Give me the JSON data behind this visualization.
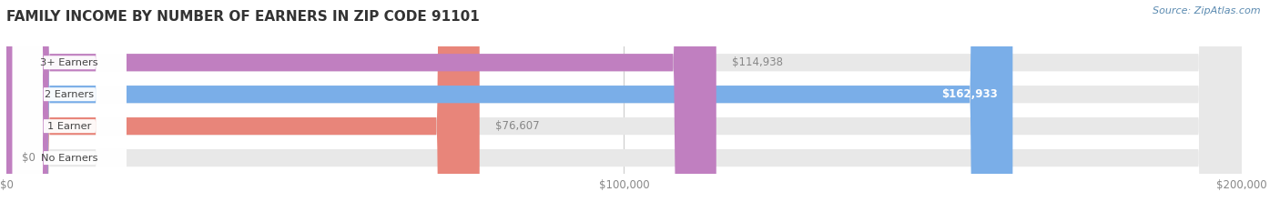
{
  "title": "FAMILY INCOME BY NUMBER OF EARNERS IN ZIP CODE 91101",
  "source": "Source: ZipAtlas.com",
  "categories": [
    "No Earners",
    "1 Earner",
    "2 Earners",
    "3+ Earners"
  ],
  "values": [
    0,
    76607,
    162933,
    114938
  ],
  "bar_colors": [
    "#f5c9a0",
    "#e8857a",
    "#7aaee8",
    "#c07fc0"
  ],
  "bar_bg_color": "#e8e8e8",
  "label_colors": [
    "#888888",
    "#888888",
    "#ffffff",
    "#888888"
  ],
  "xlim": [
    0,
    200000
  ],
  "xticks": [
    0,
    100000,
    200000
  ],
  "xtick_labels": [
    "$0",
    "$100,000",
    "$200,000"
  ],
  "background_color": "#ffffff",
  "title_fontsize": 11,
  "bar_height": 0.55,
  "value_labels": [
    "$0",
    "$76,607",
    "$162,933",
    "$114,938"
  ]
}
